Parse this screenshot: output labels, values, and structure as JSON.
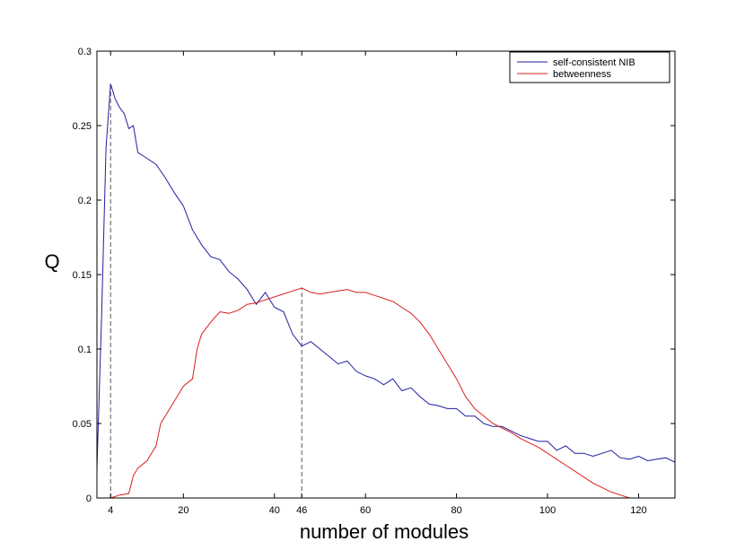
{
  "chart_data": {
    "type": "line",
    "title": "",
    "xlabel": "number of modules",
    "ylabel": "Q",
    "xlim": [
      1,
      128
    ],
    "ylim": [
      0,
      0.3
    ],
    "x_ticks": [
      4,
      20,
      40,
      46,
      60,
      80,
      100,
      120
    ],
    "y_ticks": [
      0,
      0.05,
      0.1,
      0.15,
      0.2,
      0.25,
      0.3
    ],
    "y_tick_labels": [
      "0",
      "0.05",
      "0.1",
      "0.15",
      "0.2",
      "0.25",
      "0.3"
    ],
    "grid": false,
    "legend_position": "top-right",
    "reference_lines": [
      {
        "x": 4,
        "y": 0.278,
        "style": "dashed"
      },
      {
        "x": 46,
        "y": 0.141,
        "style": "dashed"
      }
    ],
    "series": [
      {
        "name": "self-consistent NIB",
        "color": "#1f1fa0",
        "points": [
          [
            1,
            0.02
          ],
          [
            2,
            0.12
          ],
          [
            3,
            0.235
          ],
          [
            4,
            0.278
          ],
          [
            5,
            0.268
          ],
          [
            6,
            0.262
          ],
          [
            7,
            0.258
          ],
          [
            8,
            0.248
          ],
          [
            9,
            0.25
          ],
          [
            10,
            0.232
          ],
          [
            12,
            0.228
          ],
          [
            14,
            0.224
          ],
          [
            16,
            0.215
          ],
          [
            18,
            0.205
          ],
          [
            20,
            0.196
          ],
          [
            22,
            0.18
          ],
          [
            24,
            0.17
          ],
          [
            26,
            0.162
          ],
          [
            28,
            0.16
          ],
          [
            30,
            0.152
          ],
          [
            32,
            0.147
          ],
          [
            34,
            0.14
          ],
          [
            36,
            0.13
          ],
          [
            38,
            0.138
          ],
          [
            40,
            0.128
          ],
          [
            42,
            0.125
          ],
          [
            44,
            0.11
          ],
          [
            46,
            0.102
          ],
          [
            48,
            0.105
          ],
          [
            50,
            0.1
          ],
          [
            52,
            0.095
          ],
          [
            54,
            0.09
          ],
          [
            56,
            0.092
          ],
          [
            58,
            0.085
          ],
          [
            60,
            0.082
          ],
          [
            62,
            0.08
          ],
          [
            64,
            0.076
          ],
          [
            66,
            0.08
          ],
          [
            68,
            0.072
          ],
          [
            70,
            0.074
          ],
          [
            72,
            0.068
          ],
          [
            74,
            0.063
          ],
          [
            76,
            0.062
          ],
          [
            78,
            0.06
          ],
          [
            80,
            0.06
          ],
          [
            82,
            0.055
          ],
          [
            84,
            0.055
          ],
          [
            86,
            0.05
          ],
          [
            88,
            0.048
          ],
          [
            90,
            0.048
          ],
          [
            92,
            0.045
          ],
          [
            94,
            0.042
          ],
          [
            96,
            0.04
          ],
          [
            98,
            0.038
          ],
          [
            100,
            0.038
          ],
          [
            102,
            0.032
          ],
          [
            104,
            0.035
          ],
          [
            106,
            0.03
          ],
          [
            108,
            0.03
          ],
          [
            110,
            0.028
          ],
          [
            112,
            0.03
          ],
          [
            114,
            0.032
          ],
          [
            116,
            0.027
          ],
          [
            118,
            0.026
          ],
          [
            120,
            0.028
          ],
          [
            122,
            0.025
          ],
          [
            124,
            0.026
          ],
          [
            126,
            0.027
          ],
          [
            128,
            0.024
          ]
        ]
      },
      {
        "name": "betweenness",
        "color": "#d81f1f",
        "points": [
          [
            3,
            0
          ],
          [
            4,
            0
          ],
          [
            6,
            0.002
          ],
          [
            8,
            0.003
          ],
          [
            9,
            0.015
          ],
          [
            10,
            0.02
          ],
          [
            12,
            0.025
          ],
          [
            14,
            0.035
          ],
          [
            15,
            0.05
          ],
          [
            16,
            0.055
          ],
          [
            18,
            0.065
          ],
          [
            20,
            0.075
          ],
          [
            22,
            0.08
          ],
          [
            23,
            0.1
          ],
          [
            24,
            0.11
          ],
          [
            26,
            0.118
          ],
          [
            28,
            0.125
          ],
          [
            30,
            0.124
          ],
          [
            32,
            0.126
          ],
          [
            34,
            0.13
          ],
          [
            36,
            0.131
          ],
          [
            38,
            0.133
          ],
          [
            40,
            0.135
          ],
          [
            42,
            0.137
          ],
          [
            44,
            0.139
          ],
          [
            46,
            0.141
          ],
          [
            48,
            0.138
          ],
          [
            50,
            0.137
          ],
          [
            52,
            0.138
          ],
          [
            54,
            0.139
          ],
          [
            56,
            0.14
          ],
          [
            58,
            0.138
          ],
          [
            60,
            0.138
          ],
          [
            62,
            0.136
          ],
          [
            64,
            0.134
          ],
          [
            66,
            0.132
          ],
          [
            68,
            0.128
          ],
          [
            70,
            0.124
          ],
          [
            72,
            0.118
          ],
          [
            74,
            0.11
          ],
          [
            76,
            0.1
          ],
          [
            78,
            0.09
          ],
          [
            80,
            0.08
          ],
          [
            82,
            0.068
          ],
          [
            84,
            0.06
          ],
          [
            86,
            0.055
          ],
          [
            88,
            0.05
          ],
          [
            90,
            0.047
          ],
          [
            92,
            0.044
          ],
          [
            94,
            0.04
          ],
          [
            96,
            0.037
          ],
          [
            98,
            0.034
          ],
          [
            100,
            0.03
          ],
          [
            102,
            0.026
          ],
          [
            104,
            0.022
          ],
          [
            106,
            0.018
          ],
          [
            108,
            0.014
          ],
          [
            110,
            0.01
          ],
          [
            112,
            0.007
          ],
          [
            114,
            0.004
          ],
          [
            116,
            0.002
          ],
          [
            118,
            0.0
          ]
        ]
      }
    ]
  }
}
